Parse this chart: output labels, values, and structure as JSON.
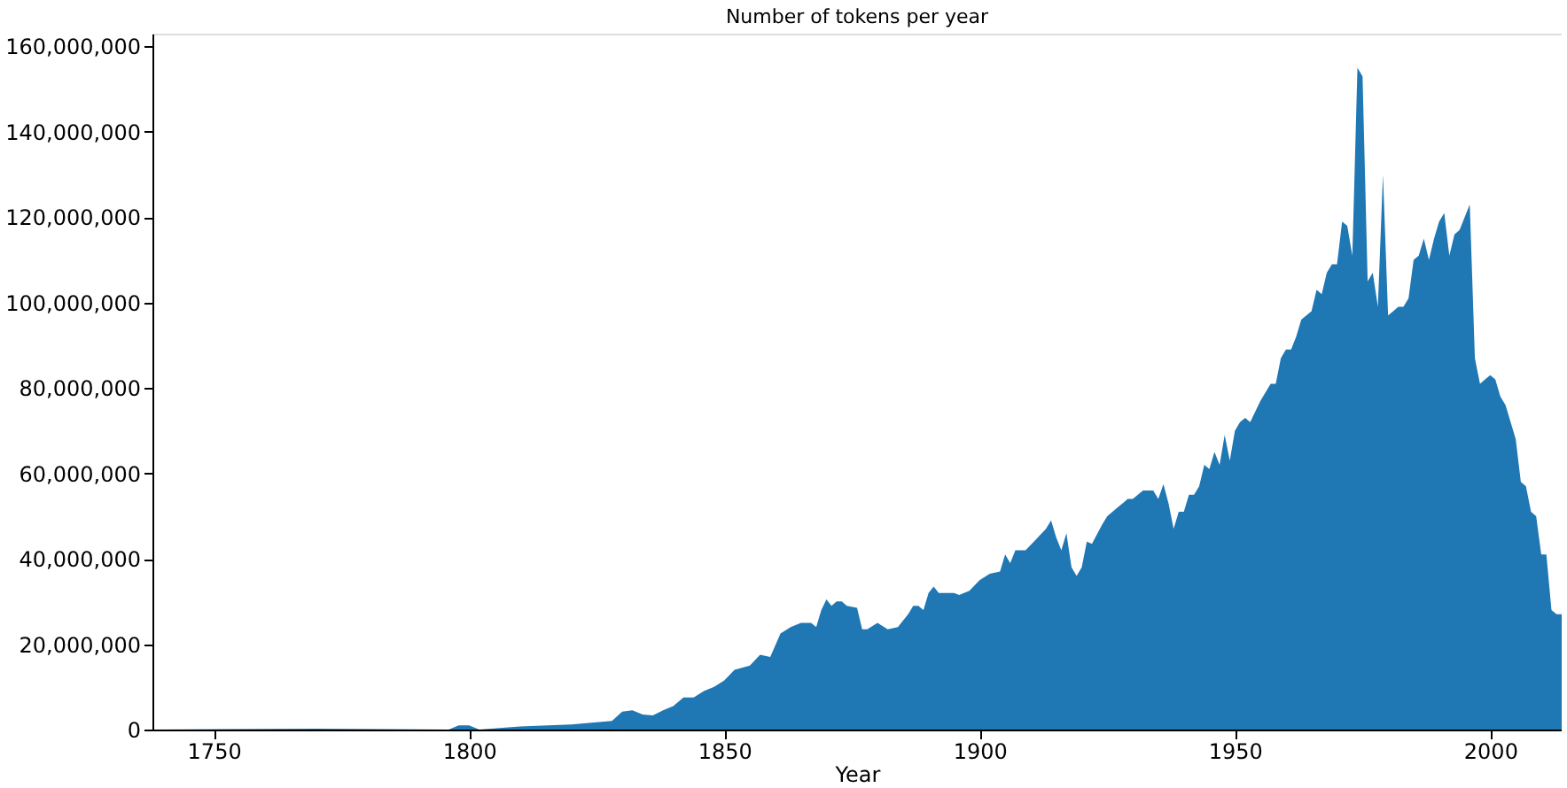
{
  "chart_data": {
    "type": "area",
    "title": "Number of tokens per year",
    "xlabel": "Year",
    "xlim": [
      1738,
      2014
    ],
    "xticks": [
      1750,
      1800,
      1850,
      1900,
      1950,
      2000
    ],
    "ylim": [
      0,
      163000000
    ],
    "yticks": [
      {
        "value": 0,
        "label": "0"
      },
      {
        "value": 20000000,
        "label": "20,000,000"
      },
      {
        "value": 40000000,
        "label": "40,000,000"
      },
      {
        "value": 60000000,
        "label": "60,000,000"
      },
      {
        "value": 80000000,
        "label": "80,000,000"
      },
      {
        "value": 100000000,
        "label": "100,000,000"
      },
      {
        "value": 120000000,
        "label": "120,000,000"
      },
      {
        "value": 140000000,
        "label": "140,000,000"
      },
      {
        "value": 160000000,
        "label": "160,000,000"
      }
    ],
    "grid": false,
    "series": [
      {
        "color": "#1f77b4",
        "x": [
          1738,
          1770,
          1796,
          1798,
          1800,
          1802,
          1810,
          1820,
          1828,
          1830,
          1832,
          1834,
          1836,
          1838,
          1840,
          1842,
          1844,
          1846,
          1848,
          1850,
          1852,
          1855,
          1857,
          1859,
          1861,
          1863,
          1865,
          1867,
          1868,
          1869,
          1870,
          1871,
          1872,
          1873,
          1874,
          1876,
          1877,
          1878,
          1880,
          1882,
          1884,
          1886,
          1887,
          1888,
          1889,
          1890,
          1891,
          1892,
          1895,
          1896,
          1898,
          1900,
          1902,
          1904,
          1905,
          1906,
          1907,
          1909,
          1911,
          1913,
          1914,
          1915,
          1916,
          1917,
          1918,
          1919,
          1920,
          1921,
          1922,
          1924,
          1925,
          1927,
          1929,
          1930,
          1932,
          1934,
          1935,
          1936,
          1937,
          1938,
          1939,
          1940,
          1941,
          1942,
          1943,
          1944,
          1945,
          1946,
          1947,
          1948,
          1949,
          1950,
          1951,
          1952,
          1953,
          1955,
          1957,
          1958,
          1959,
          1960,
          1961,
          1962,
          1963,
          1965,
          1966,
          1967,
          1968,
          1969,
          1970,
          1971,
          1972,
          1973,
          1974,
          1975,
          1976,
          1977,
          1978,
          1979,
          1980,
          1981,
          1982,
          1983,
          1984,
          1985,
          1986,
          1987,
          1988,
          1989,
          1990,
          1991,
          1992,
          1993,
          1994,
          1995,
          1996,
          1997,
          1998,
          1999,
          2000,
          2001,
          2002,
          2003,
          2004,
          2005,
          2006,
          2007,
          2008,
          2009,
          2010,
          2011,
          2012,
          2013,
          2014
        ],
        "values": [
          0,
          200000,
          0,
          1000000,
          1000000,
          0,
          700000,
          1200000,
          2000000,
          4200000,
          4500000,
          3500000,
          3300000,
          4500000,
          5500000,
          7500000,
          7500000,
          9000000,
          10000000,
          11500000,
          14000000,
          15000000,
          17500000,
          17000000,
          22500000,
          24000000,
          25000000,
          25000000,
          24000000,
          28000000,
          30500000,
          29000000,
          30000000,
          30000000,
          29000000,
          28500000,
          23500000,
          23500000,
          25000000,
          23500000,
          24000000,
          27000000,
          29000000,
          29000000,
          28000000,
          32000000,
          33500000,
          32000000,
          32000000,
          31500000,
          32500000,
          35000000,
          36500000,
          37000000,
          41000000,
          39000000,
          42000000,
          42000000,
          44500000,
          47000000,
          49000000,
          45000000,
          42000000,
          46000000,
          38000000,
          36000000,
          38000000,
          44000000,
          43500000,
          48000000,
          50000000,
          52000000,
          54000000,
          54000000,
          56000000,
          56000000,
          54000000,
          57500000,
          53000000,
          47000000,
          51000000,
          51000000,
          55000000,
          55000000,
          57000000,
          62000000,
          61000000,
          65000000,
          62000000,
          69000000,
          63000000,
          70000000,
          72000000,
          73000000,
          72000000,
          77000000,
          81000000,
          81000000,
          87000000,
          89000000,
          89000000,
          92000000,
          96000000,
          98000000,
          103000000,
          102000000,
          107000000,
          109000000,
          109000000,
          119000000,
          118000000,
          111000000,
          155000000,
          153000000,
          105000000,
          107000000,
          99000000,
          130000000,
          97000000,
          98000000,
          99000000,
          99000000,
          101000000,
          110000000,
          111000000,
          115000000,
          110000000,
          115000000,
          119000000,
          121000000,
          111000000,
          116000000,
          117000000,
          120000000,
          123000000,
          87000000,
          81000000,
          82000000,
          83000000,
          82000000,
          78000000,
          76000000,
          72000000,
          68000000,
          58000000,
          57000000,
          51000000,
          50000000,
          41000000,
          41000000,
          28000000,
          27000000,
          27000000
        ]
      }
    ]
  }
}
